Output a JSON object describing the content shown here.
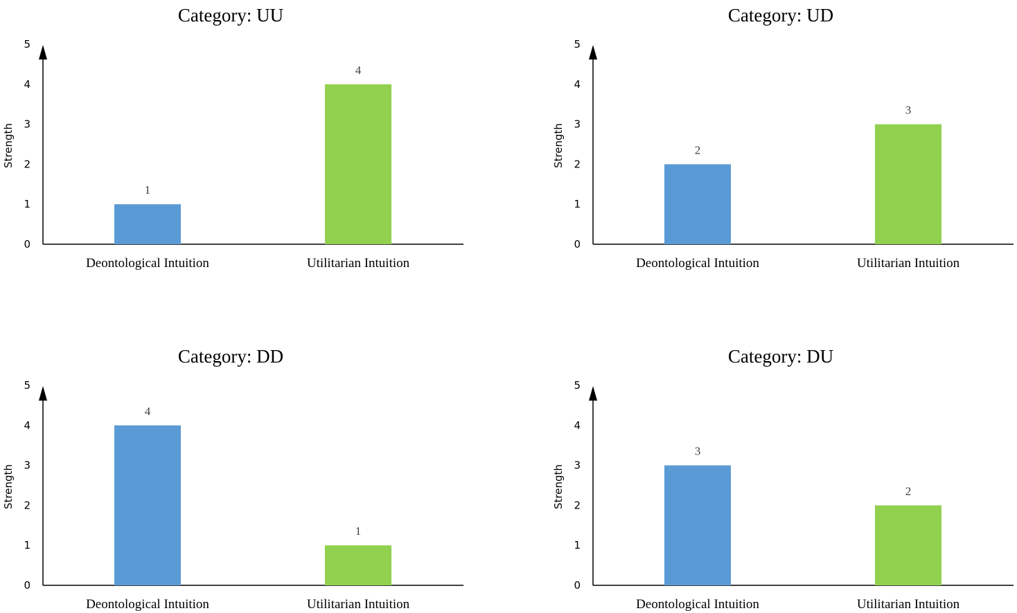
{
  "chart_data": [
    {
      "type": "bar",
      "title": "Category: UU",
      "ylabel": "Strength",
      "xlabel": "",
      "ylim": [
        0,
        5
      ],
      "yticks": [
        "0",
        "1",
        "2",
        "3",
        "4",
        "5"
      ],
      "categories": [
        "Deontological Intuition",
        "Utilitarian Intuition"
      ],
      "values": [
        1,
        4
      ],
      "bar_colors": [
        "#5b9bd5",
        "#92d050"
      ],
      "grid": false,
      "legend": "none"
    },
    {
      "type": "bar",
      "title": "Category: UD",
      "ylabel": "Strength",
      "xlabel": "",
      "ylim": [
        0,
        5
      ],
      "yticks": [
        "0",
        "1",
        "2",
        "3",
        "4",
        "5"
      ],
      "categories": [
        "Deontological Intuition",
        "Utilitarian Intuition"
      ],
      "values": [
        2,
        3
      ],
      "bar_colors": [
        "#5b9bd5",
        "#92d050"
      ],
      "grid": false,
      "legend": "none"
    },
    {
      "type": "bar",
      "title": "Category: DD",
      "ylabel": "Strength",
      "xlabel": "",
      "ylim": [
        0,
        5
      ],
      "yticks": [
        "0",
        "1",
        "2",
        "3",
        "4",
        "5"
      ],
      "categories": [
        "Deontological Intuition",
        "Utilitarian Intuition"
      ],
      "values": [
        4,
        1
      ],
      "bar_colors": [
        "#5b9bd5",
        "#92d050"
      ],
      "grid": false,
      "legend": "none"
    },
    {
      "type": "bar",
      "title": "Category: DU",
      "ylabel": "Strength",
      "xlabel": "",
      "ylim": [
        0,
        5
      ],
      "yticks": [
        "0",
        "1",
        "2",
        "3",
        "4",
        "5"
      ],
      "categories": [
        "Deontological Intuition",
        "Utilitarian Intuition"
      ],
      "values": [
        3,
        2
      ],
      "bar_colors": [
        "#5b9bd5",
        "#92d050"
      ],
      "grid": false,
      "legend": "none"
    }
  ]
}
